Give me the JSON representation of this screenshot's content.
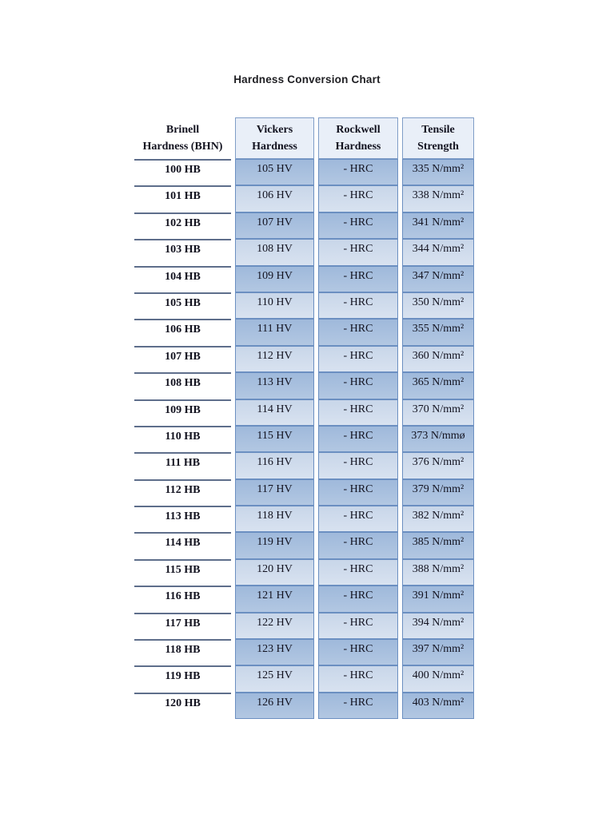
{
  "page": {
    "title": "Hardness Conversion Chart"
  },
  "table": {
    "columns": [
      "Brinell\nHardness (BHN)",
      "Vickers\nHardness",
      "Rockwell\nHardness",
      "Tensile\nStrength"
    ],
    "rows": [
      {
        "bhn": "100 HB",
        "vickers": "105 HV",
        "rockwell": "- HRC",
        "tensile": "335 N/mm²"
      },
      {
        "bhn": "101 HB",
        "vickers": "106 HV",
        "rockwell": "- HRC",
        "tensile": "338 N/mm²"
      },
      {
        "bhn": "102 HB",
        "vickers": "107 HV",
        "rockwell": "- HRC",
        "tensile": "341 N/mm²"
      },
      {
        "bhn": "103 HB",
        "vickers": "108 HV",
        "rockwell": "- HRC",
        "tensile": "344 N/mm²"
      },
      {
        "bhn": "104 HB",
        "vickers": "109 HV",
        "rockwell": "- HRC",
        "tensile": "347 N/mm²"
      },
      {
        "bhn": "105 HB",
        "vickers": "110 HV",
        "rockwell": "- HRC",
        "tensile": "350 N/mm²"
      },
      {
        "bhn": "106 HB",
        "vickers": "111 HV",
        "rockwell": "- HRC",
        "tensile": "355 N/mm²"
      },
      {
        "bhn": "107 HB",
        "vickers": "112 HV",
        "rockwell": "- HRC",
        "tensile": "360 N/mm²"
      },
      {
        "bhn": "108 HB",
        "vickers": "113 HV",
        "rockwell": "- HRC",
        "tensile": "365 N/mm²"
      },
      {
        "bhn": "109 HB",
        "vickers": "114 HV",
        "rockwell": "- HRC",
        "tensile": "370 N/mm²"
      },
      {
        "bhn": "110 HB",
        "vickers": "115 HV",
        "rockwell": "- HRC",
        "tensile": "373 N/mmø"
      },
      {
        "bhn": "111 HB",
        "vickers": "116 HV",
        "rockwell": "- HRC",
        "tensile": "376 N/mm²"
      },
      {
        "bhn": "112 HB",
        "vickers": "117 HV",
        "rockwell": "- HRC",
        "tensile": "379 N/mm²"
      },
      {
        "bhn": "113 HB",
        "vickers": "118 HV",
        "rockwell": "- HRC",
        "tensile": "382 N/mm²"
      },
      {
        "bhn": "114 HB",
        "vickers": "119 HV",
        "rockwell": "- HRC",
        "tensile": "385 N/mm²"
      },
      {
        "bhn": "115 HB",
        "vickers": "120 HV",
        "rockwell": "- HRC",
        "tensile": "388 N/mm²"
      },
      {
        "bhn": "116 HB",
        "vickers": "121 HV",
        "rockwell": "- HRC",
        "tensile": "391 N/mm²"
      },
      {
        "bhn": "117 HB",
        "vickers": "122 HV",
        "rockwell": "- HRC",
        "tensile": "394 N/mm²"
      },
      {
        "bhn": "118 HB",
        "vickers": "123 HV",
        "rockwell": "- HRC",
        "tensile": "397 N/mm²"
      },
      {
        "bhn": "119 HB",
        "vickers": "125 HV",
        "rockwell": "- HRC",
        "tensile": "400 N/mm²"
      },
      {
        "bhn": "120 HB",
        "vickers": "126 HV",
        "rockwell": "- HRC",
        "tensile": "403 N/mm²"
      }
    ],
    "band_colors": {
      "dark_row": "#a7c0df",
      "light_row": "#cfdcec",
      "header_fill": "#e9eff8",
      "cell_border": "#6b8fc1",
      "column1_rule": "#5e6e8b"
    }
  }
}
